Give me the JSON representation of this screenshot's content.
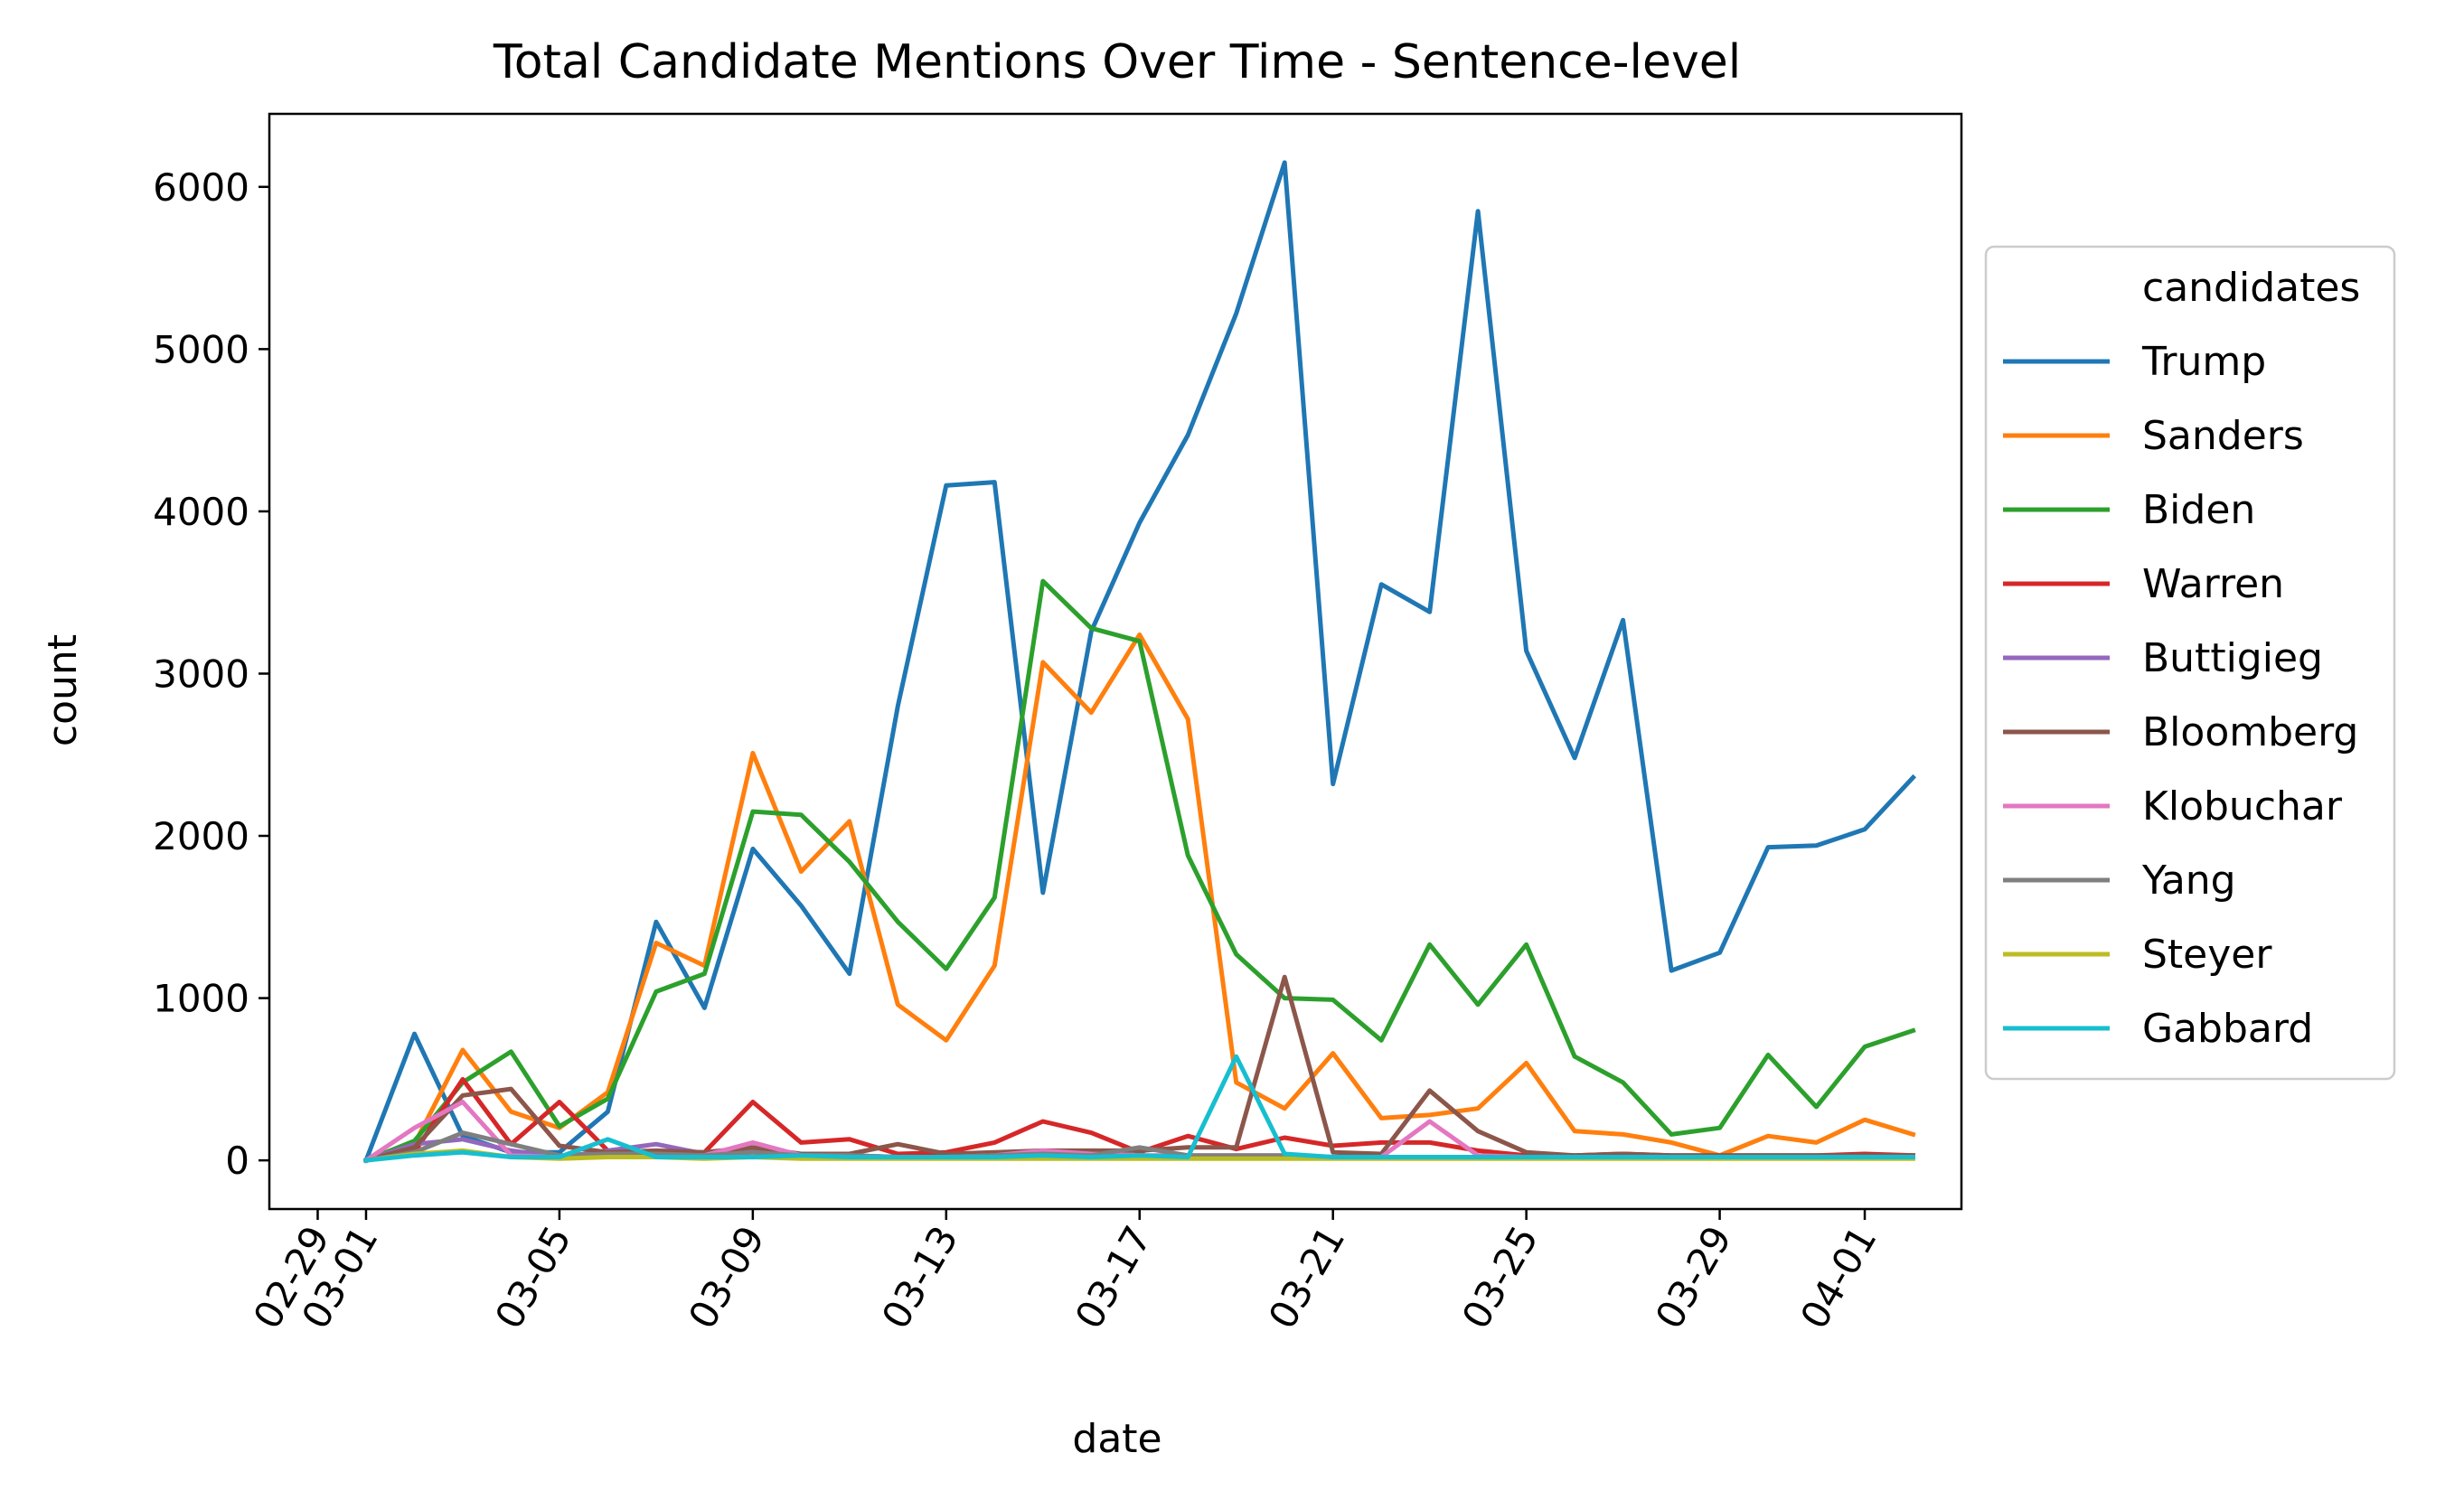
{
  "chart_data": {
    "type": "line",
    "title": "Total Candidate Mentions Over Time - Sentence-level",
    "xlabel": "date",
    "ylabel": "count",
    "legend_title": "candidates",
    "legend_position": "right outside",
    "grid": false,
    "x_range": [
      "2020-02-28",
      "2020-04-03"
    ],
    "ylim": [
      -300,
      6450
    ],
    "y_ticks": [
      0,
      1000,
      2000,
      3000,
      4000,
      5000,
      6000
    ],
    "x_ticks": [
      {
        "date": "2020-02-29",
        "label": "02-29"
      },
      {
        "date": "2020-03-01",
        "label": "03-01"
      },
      {
        "date": "2020-03-05",
        "label": "03-05"
      },
      {
        "date": "2020-03-09",
        "label": "03-09"
      },
      {
        "date": "2020-03-13",
        "label": "03-13"
      },
      {
        "date": "2020-03-17",
        "label": "03-17"
      },
      {
        "date": "2020-03-21",
        "label": "03-21"
      },
      {
        "date": "2020-03-25",
        "label": "03-25"
      },
      {
        "date": "2020-03-29",
        "label": "03-29"
      },
      {
        "date": "2020-04-01",
        "label": "04-01"
      }
    ],
    "x": [
      "2020-03-01",
      "2020-03-02",
      "2020-03-03",
      "2020-03-04",
      "2020-03-05",
      "2020-03-06",
      "2020-03-07",
      "2020-03-08",
      "2020-03-09",
      "2020-03-10",
      "2020-03-11",
      "2020-03-12",
      "2020-03-13",
      "2020-03-14",
      "2020-03-15",
      "2020-03-16",
      "2020-03-17",
      "2020-03-18",
      "2020-03-19",
      "2020-03-20",
      "2020-03-21",
      "2020-03-22",
      "2020-03-23",
      "2020-03-24",
      "2020-03-25",
      "2020-03-26",
      "2020-03-27",
      "2020-03-28",
      "2020-03-29",
      "2020-03-30",
      "2020-03-31",
      "2020-04-01",
      "2020-04-02"
    ],
    "series": [
      {
        "name": "Trump",
        "color": "#1f77b4",
        "values": [
          0,
          780,
          150,
          50,
          50,
          300,
          1470,
          940,
          1920,
          1570,
          1150,
          2800,
          4160,
          4180,
          1650,
          3260,
          3930,
          4470,
          5220,
          6150,
          2320,
          3550,
          3380,
          5850,
          3140,
          2480,
          3330,
          1170,
          1280,
          1930,
          1940,
          2040,
          2360
        ]
      },
      {
        "name": "Sanders",
        "color": "#ff7f0e",
        "values": [
          0,
          100,
          680,
          300,
          200,
          420,
          1340,
          1200,
          2510,
          1780,
          2090,
          960,
          740,
          1200,
          3070,
          2760,
          3240,
          2720,
          480,
          320,
          660,
          260,
          280,
          320,
          600,
          180,
          160,
          110,
          30,
          150,
          110,
          250,
          160
        ]
      },
      {
        "name": "Biden",
        "color": "#2ca02c",
        "values": [
          0,
          120,
          480,
          670,
          210,
          380,
          1040,
          1150,
          2150,
          2130,
          1840,
          1470,
          1180,
          1620,
          3570,
          3280,
          3200,
          1880,
          1270,
          1000,
          990,
          740,
          1330,
          960,
          1330,
          640,
          480,
          160,
          200,
          650,
          330,
          700,
          800
        ]
      },
      {
        "name": "Warren",
        "color": "#d62728",
        "values": [
          0,
          50,
          500,
          100,
          360,
          60,
          40,
          50,
          360,
          110,
          130,
          40,
          50,
          110,
          240,
          170,
          50,
          150,
          70,
          140,
          90,
          110,
          110,
          60,
          30,
          30,
          40,
          30,
          30,
          30,
          30,
          40,
          30
        ]
      },
      {
        "name": "Buttigieg",
        "color": "#9467bd",
        "values": [
          0,
          100,
          130,
          60,
          20,
          60,
          100,
          40,
          60,
          40,
          30,
          20,
          20,
          30,
          40,
          30,
          30,
          20,
          20,
          20,
          20,
          20,
          20,
          20,
          20,
          20,
          20,
          20,
          20,
          20,
          20,
          20,
          20
        ]
      },
      {
        "name": "Bloomberg",
        "color": "#8c564b",
        "values": [
          0,
          80,
          400,
          440,
          90,
          50,
          60,
          50,
          80,
          40,
          40,
          100,
          40,
          50,
          60,
          60,
          60,
          80,
          80,
          1130,
          50,
          40,
          430,
          180,
          50,
          30,
          40,
          30,
          30,
          30,
          30,
          30,
          30
        ]
      },
      {
        "name": "Klobuchar",
        "color": "#e377c2",
        "values": [
          0,
          200,
          360,
          30,
          20,
          40,
          30,
          30,
          110,
          30,
          30,
          20,
          20,
          30,
          60,
          40,
          30,
          30,
          30,
          30,
          20,
          20,
          240,
          30,
          20,
          20,
          20,
          20,
          20,
          20,
          20,
          20,
          20
        ]
      },
      {
        "name": "Yang",
        "color": "#7f7f7f",
        "values": [
          0,
          50,
          170,
          100,
          30,
          40,
          40,
          30,
          50,
          30,
          30,
          20,
          20,
          30,
          40,
          30,
          80,
          30,
          30,
          30,
          20,
          20,
          20,
          20,
          20,
          20,
          20,
          20,
          20,
          20,
          20,
          20,
          20
        ]
      },
      {
        "name": "Steyer",
        "color": "#bcbd22",
        "values": [
          0,
          40,
          60,
          20,
          10,
          20,
          20,
          10,
          20,
          10,
          10,
          10,
          10,
          10,
          10,
          10,
          10,
          10,
          10,
          10,
          10,
          10,
          10,
          10,
          10,
          10,
          10,
          10,
          10,
          10,
          10,
          10,
          10
        ]
      },
      {
        "name": "Gabbard",
        "color": "#17becf",
        "values": [
          0,
          30,
          50,
          20,
          20,
          130,
          20,
          20,
          20,
          30,
          20,
          20,
          20,
          20,
          30,
          20,
          30,
          20,
          640,
          40,
          20,
          20,
          20,
          20,
          20,
          20,
          20,
          20,
          20,
          20,
          20,
          20,
          20
        ]
      }
    ]
  }
}
